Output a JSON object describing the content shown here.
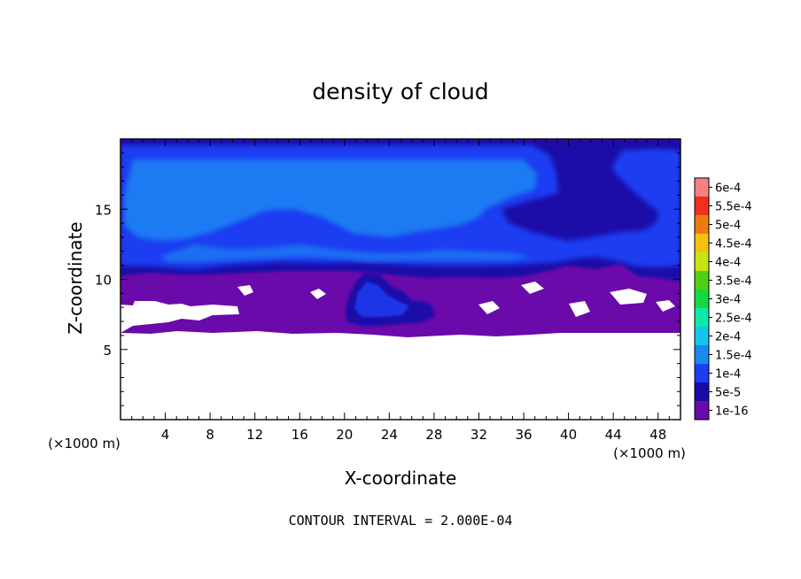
{
  "chart_data": {
    "type": "heatmap",
    "title": "density of cloud",
    "xlabel": "X-coordinate",
    "ylabel": "Z-coordinate",
    "x_unit_label": "(×1000 m)",
    "z_unit_label": "(×1000 m)",
    "xlim": [
      0,
      50
    ],
    "ylim": [
      0,
      20
    ],
    "x_ticks": [
      4,
      8,
      12,
      16,
      20,
      24,
      28,
      32,
      36,
      40,
      44,
      48
    ],
    "y_ticks": [
      5,
      10,
      15
    ],
    "contour_interval_text": "CONTOUR INTERVAL = 2.000E-04",
    "colorbar": {
      "levels": [
        {
          "label": "1e-16",
          "color": "#6a0aab"
        },
        {
          "label": "5e-5",
          "color": "#1a0aa8"
        },
        {
          "label": "1e-4",
          "color": "#1a3ef2"
        },
        {
          "label": "1.5e-4",
          "color": "#1a8af2"
        },
        {
          "label": "2e-4",
          "color": "#12c7ea"
        },
        {
          "label": "2.5e-4",
          "color": "#10e8a8"
        },
        {
          "label": "3e-4",
          "color": "#17d840"
        },
        {
          "label": "3.5e-4",
          "color": "#52cf17"
        },
        {
          "label": "4e-4",
          "color": "#c8e414"
        },
        {
          "label": "4.5e-4",
          "color": "#f2c20e"
        },
        {
          "label": "5e-4",
          "color": "#f07a10"
        },
        {
          "label": "5.5e-4",
          "color": "#f0301a"
        },
        {
          "label": "6e-4",
          "color": "#f48282"
        }
      ]
    },
    "field_description": "Upper band (z ~10-19) mostly 1e-4 to 1.5e-4 (blue), lower cloud layer (z ~6-10) at 1e-16 (purple), clear air below z ~6 (white)."
  }
}
